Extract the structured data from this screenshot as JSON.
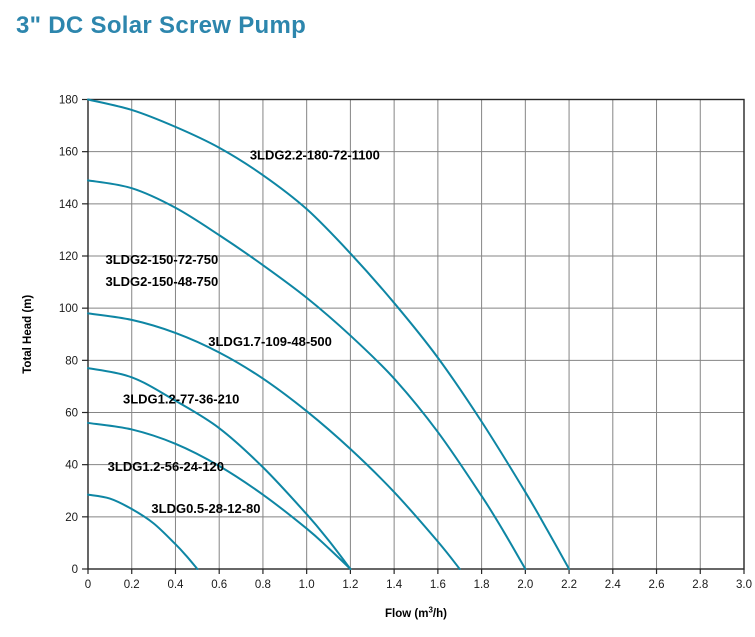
{
  "header": {
    "title": "3\" DC Solar Screw Pump"
  },
  "colors": {
    "title": "#2D86AD",
    "curve": "#0E86A4",
    "grid": "#858585",
    "axis": "#262626",
    "tick_text": "#1A1A1A",
    "annotation_text": "#000000",
    "background": "#FFFFFF"
  },
  "chart_data": {
    "type": "line",
    "title": "3\" DC Solar Screw Pump",
    "xlabel": "Flow (m³/h)",
    "xlabel_parts": {
      "prefix": "Flow (m",
      "sup": "3",
      "suffix": "/h)"
    },
    "ylabel": "Total Head (m)",
    "xlim": [
      0,
      3.0
    ],
    "ylim": [
      0,
      180
    ],
    "x_ticks": [
      0,
      0.2,
      0.4,
      0.6,
      0.8,
      1.0,
      1.2,
      1.4,
      1.6,
      1.8,
      2.0,
      2.2,
      2.4,
      2.6,
      2.8,
      3.0
    ],
    "x_tick_labels": [
      "0",
      "0.2",
      "0.4",
      "0.6",
      "0.8",
      "1.0",
      "1.2",
      "1.4",
      "1.6",
      "1.8",
      "2.0",
      "2.2",
      "2.4",
      "2.6",
      "2.8",
      "3.0"
    ],
    "y_ticks": [
      0,
      20,
      40,
      60,
      80,
      100,
      120,
      140,
      160,
      180
    ],
    "y_tick_labels": [
      "0",
      "20",
      "40",
      "60",
      "80",
      "100",
      "120",
      "140",
      "160",
      "180"
    ],
    "grid": true,
    "legend_position": "inline-annotations",
    "series": [
      {
        "name": "3LDG2.2-180-72-1100",
        "shutoff_head_m": 180,
        "max_flow_m3h": 2.2,
        "points": [
          [
            0,
            180
          ],
          [
            0.2,
            176
          ],
          [
            0.4,
            169.5
          ],
          [
            0.6,
            161.5
          ],
          [
            0.8,
            151
          ],
          [
            1.0,
            138
          ],
          [
            1.2,
            121
          ],
          [
            1.4,
            102
          ],
          [
            1.6,
            81
          ],
          [
            1.8,
            56.5
          ],
          [
            2.0,
            29.5
          ],
          [
            2.1,
            15
          ],
          [
            2.2,
            0
          ]
        ]
      },
      {
        "name": "3LDG2-150-72-750 / 3LDG2-150-48-750",
        "shutoff_head_m": 149,
        "max_flow_m3h": 2.0,
        "points": [
          [
            0,
            149
          ],
          [
            0.2,
            146
          ],
          [
            0.4,
            138.5
          ],
          [
            0.6,
            128
          ],
          [
            0.8,
            116.5
          ],
          [
            1.0,
            104
          ],
          [
            1.2,
            89.5
          ],
          [
            1.4,
            73
          ],
          [
            1.6,
            52.5
          ],
          [
            1.8,
            28
          ],
          [
            1.9,
            14.5
          ],
          [
            2.0,
            0
          ]
        ]
      },
      {
        "name": "3LDG1.7-109-48-500",
        "shutoff_head_m": 98,
        "max_flow_m3h": 1.7,
        "points": [
          [
            0,
            98
          ],
          [
            0.2,
            95.5
          ],
          [
            0.4,
            90.5
          ],
          [
            0.6,
            83
          ],
          [
            0.8,
            73
          ],
          [
            1.0,
            60.5
          ],
          [
            1.2,
            46
          ],
          [
            1.4,
            29.5
          ],
          [
            1.6,
            10.5
          ],
          [
            1.7,
            0
          ]
        ]
      },
      {
        "name": "3LDG1.2-77-36-210",
        "shutoff_head_m": 77,
        "max_flow_m3h": 1.2,
        "points": [
          [
            0,
            77
          ],
          [
            0.2,
            73.5
          ],
          [
            0.4,
            64.5
          ],
          [
            0.6,
            54
          ],
          [
            0.8,
            39
          ],
          [
            1.0,
            21
          ],
          [
            1.1,
            11
          ],
          [
            1.2,
            0
          ]
        ]
      },
      {
        "name": "3LDG1.2-56-24-120",
        "shutoff_head_m": 56,
        "max_flow_m3h": 1.2,
        "points": [
          [
            0,
            56
          ],
          [
            0.2,
            53.5
          ],
          [
            0.4,
            48
          ],
          [
            0.6,
            39.5
          ],
          [
            0.8,
            28.5
          ],
          [
            1.0,
            15.5
          ],
          [
            1.1,
            8
          ],
          [
            1.2,
            0
          ]
        ]
      },
      {
        "name": "3LDG0.5-28-12-80",
        "shutoff_head_m": 28.5,
        "max_flow_m3h": 0.5,
        "points": [
          [
            0,
            28.5
          ],
          [
            0.1,
            27
          ],
          [
            0.2,
            23
          ],
          [
            0.3,
            17.5
          ],
          [
            0.4,
            9.5
          ],
          [
            0.45,
            5
          ],
          [
            0.5,
            0
          ]
        ]
      }
    ],
    "annotations": [
      {
        "text": "3LDG2.2-180-72-1100",
        "x": 0.74,
        "y": 157
      },
      {
        "text": "3LDG2-150-72-750",
        "x": 0.08,
        "y": 117
      },
      {
        "text": "3LDG2-150-48-750",
        "x": 0.08,
        "y": 108.5
      },
      {
        "text": "3LDG1.7-109-48-500",
        "x": 0.55,
        "y": 85.5
      },
      {
        "text": "3LDG1.2-77-36-210",
        "x": 0.16,
        "y": 63.5
      },
      {
        "text": "3LDG1.2-56-24-120",
        "x": 0.09,
        "y": 37.5
      },
      {
        "text": "3LDG0.5-28-12-80",
        "x": 0.29,
        "y": 21.5
      }
    ]
  }
}
